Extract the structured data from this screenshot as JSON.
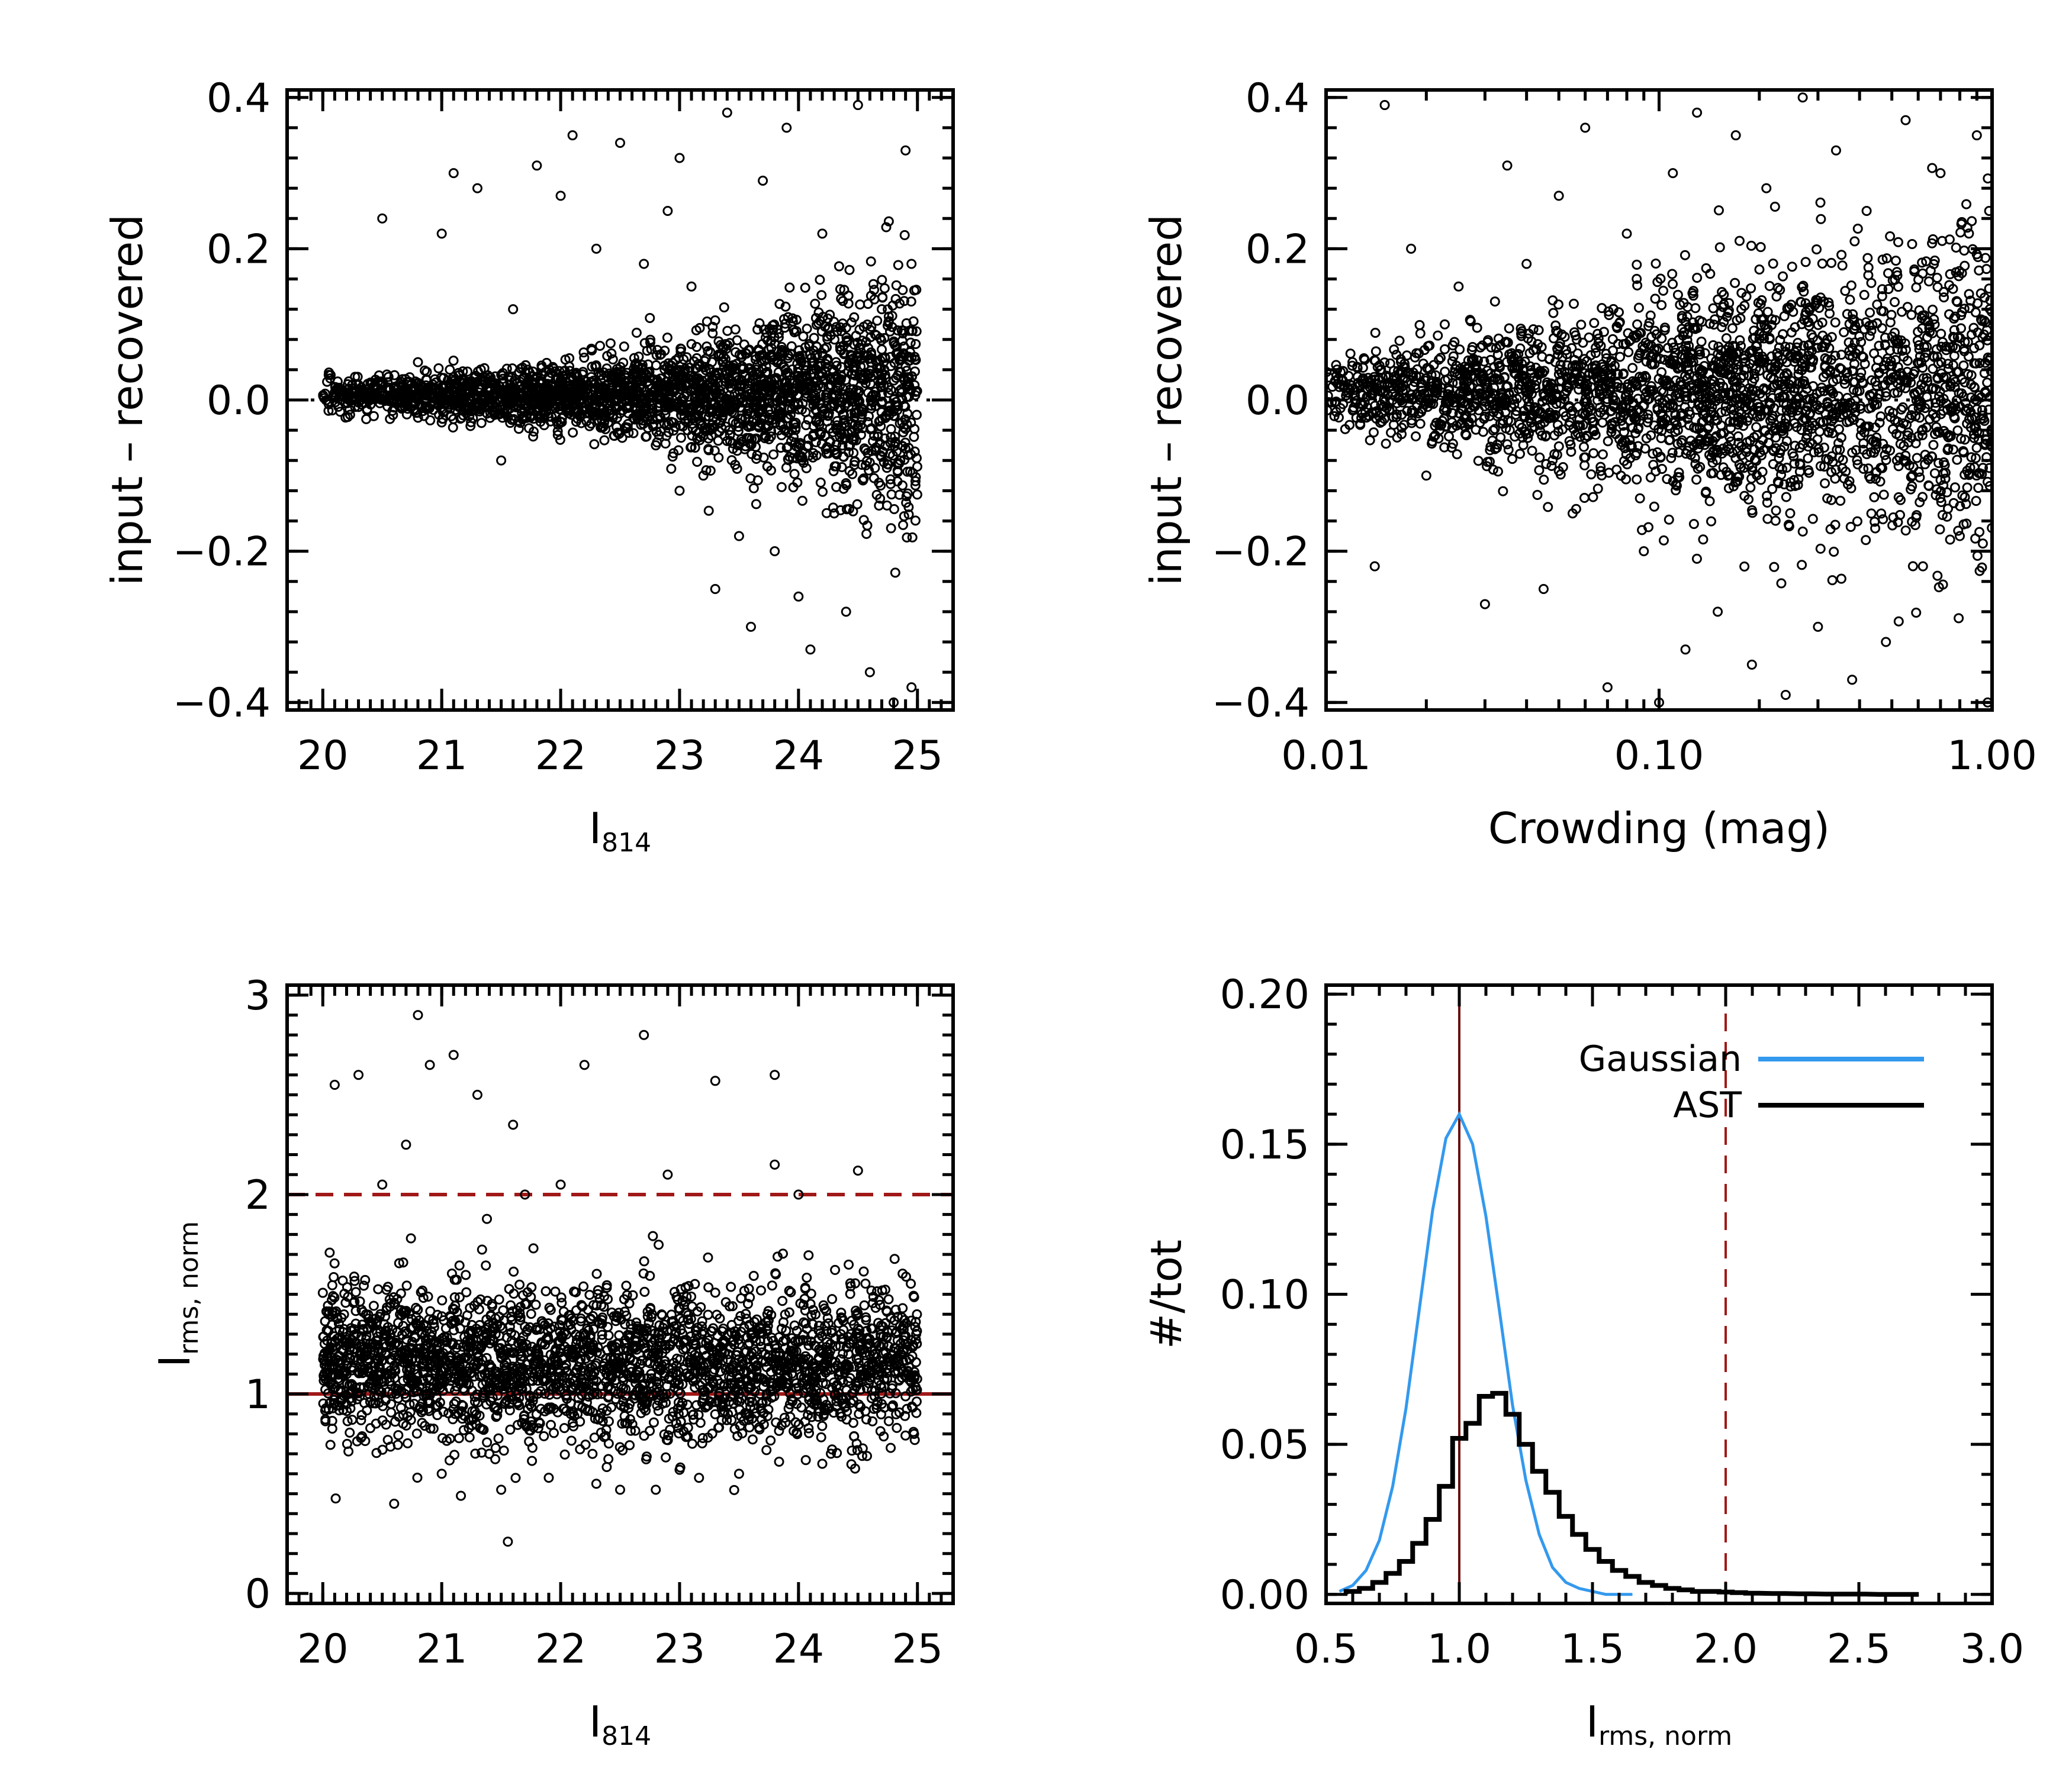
{
  "chart_data": [
    {
      "id": "top-left",
      "type": "scatter",
      "xlabel": "I",
      "xlabel_sub": "814",
      "ylabel": "input – recovered",
      "xlim": [
        19.7,
        25.3
      ],
      "ylim": [
        -0.41,
        0.41
      ],
      "xticks": [
        20,
        21,
        22,
        23,
        24,
        25
      ],
      "xtick_labels": [
        "20",
        "21",
        "22",
        "23",
        "24",
        "25"
      ],
      "yticks": [
        -0.4,
        -0.2,
        0.0,
        0.2,
        0.4
      ],
      "ytick_labels": [
        "−0.4",
        "−0.2",
        "0.0",
        "0.2",
        "0.4"
      ],
      "reference_lines": [
        {
          "axis": "y",
          "value": 0.0,
          "style": "dotted",
          "color": "#000000"
        }
      ],
      "points": [
        [
          20.1,
          0.01
        ],
        [
          20.3,
          0.02
        ],
        [
          20.5,
          0.24
        ],
        [
          20.6,
          -0.01
        ],
        [
          20.8,
          0.05
        ],
        [
          21.0,
          0.22
        ],
        [
          21.1,
          0.3
        ],
        [
          21.3,
          0.28
        ],
        [
          21.5,
          -0.08
        ],
        [
          21.6,
          0.12
        ],
        [
          21.8,
          0.31
        ],
        [
          22.0,
          0.27
        ],
        [
          22.1,
          0.35
        ],
        [
          22.3,
          0.2
        ],
        [
          22.4,
          -0.03
        ],
        [
          22.5,
          0.34
        ],
        [
          22.7,
          0.18
        ],
        [
          22.8,
          -0.06
        ],
        [
          22.9,
          0.25
        ],
        [
          23.0,
          0.32
        ],
        [
          23.0,
          -0.12
        ],
        [
          23.1,
          0.15
        ],
        [
          23.2,
          -0.1
        ],
        [
          23.3,
          -0.25
        ],
        [
          23.4,
          0.38
        ],
        [
          23.5,
          -0.18
        ],
        [
          23.6,
          -0.3
        ],
        [
          23.7,
          0.29
        ],
        [
          23.8,
          -0.2
        ],
        [
          23.9,
          0.36
        ],
        [
          24.0,
          -0.26
        ],
        [
          24.1,
          -0.33
        ],
        [
          24.2,
          0.22
        ],
        [
          24.3,
          -0.15
        ],
        [
          24.4,
          -0.28
        ],
        [
          24.5,
          0.39
        ],
        [
          24.6,
          -0.36
        ],
        [
          24.7,
          0.12
        ],
        [
          24.8,
          -0.4
        ],
        [
          24.9,
          0.33
        ],
        [
          24.95,
          -0.38
        ],
        [
          24.95,
          0.18
        ]
      ]
    },
    {
      "id": "top-right",
      "type": "scatter",
      "xscale": "log",
      "xlabel": "Crowding (mag)",
      "ylabel": "input – recovered",
      "xlim": [
        0.01,
        1.0
      ],
      "ylim": [
        -0.41,
        0.41
      ],
      "xticks": [
        0.01,
        0.1,
        1.0
      ],
      "xtick_labels": [
        "0.01",
        "0.10",
        "1.00"
      ],
      "yticks": [
        -0.4,
        -0.2,
        0.0,
        0.2,
        0.4
      ],
      "ytick_labels": [
        "−0.4",
        "−0.2",
        "0.0",
        "0.2",
        "0.4"
      ],
      "reference_lines": [
        {
          "axis": "y",
          "value": 0.0,
          "style": "dotted",
          "color": "#000000"
        }
      ],
      "points": [
        [
          0.012,
          0.05
        ],
        [
          0.014,
          -0.22
        ],
        [
          0.015,
          0.39
        ],
        [
          0.018,
          0.2
        ],
        [
          0.02,
          -0.1
        ],
        [
          0.025,
          0.15
        ],
        [
          0.03,
          -0.27
        ],
        [
          0.035,
          0.31
        ],
        [
          0.04,
          0.18
        ],
        [
          0.045,
          -0.25
        ],
        [
          0.05,
          0.27
        ],
        [
          0.055,
          -0.15
        ],
        [
          0.06,
          0.36
        ],
        [
          0.07,
          -0.38
        ],
        [
          0.08,
          0.22
        ],
        [
          0.09,
          -0.2
        ],
        [
          0.1,
          -0.4
        ],
        [
          0.11,
          0.3
        ],
        [
          0.12,
          -0.33
        ],
        [
          0.13,
          0.38
        ],
        [
          0.15,
          -0.28
        ],
        [
          0.17,
          0.35
        ],
        [
          0.19,
          -0.35
        ],
        [
          0.21,
          0.28
        ],
        [
          0.24,
          -0.39
        ],
        [
          0.27,
          0.4
        ],
        [
          0.3,
          -0.3
        ],
        [
          0.34,
          0.33
        ],
        [
          0.38,
          -0.37
        ],
        [
          0.42,
          0.25
        ],
        [
          0.48,
          -0.32
        ],
        [
          0.55,
          0.37
        ],
        [
          0.62,
          -0.22
        ],
        [
          0.7,
          0.3
        ],
        [
          0.8,
          -0.18
        ],
        [
          0.9,
          0.35
        ],
        [
          0.97,
          -0.4
        ],
        [
          0.98,
          0.25
        ]
      ]
    },
    {
      "id": "bottom-left",
      "type": "scatter",
      "xlabel": "I",
      "xlabel_sub": "814",
      "ylabel": "I",
      "ylabel_sub": "rms, norm",
      "xlim": [
        19.7,
        25.3
      ],
      "ylim": [
        -0.05,
        3.05
      ],
      "xticks": [
        20,
        21,
        22,
        23,
        24,
        25
      ],
      "xtick_labels": [
        "20",
        "21",
        "22",
        "23",
        "24",
        "25"
      ],
      "yticks": [
        0,
        1,
        2,
        3
      ],
      "ytick_labels": [
        "0",
        "1",
        "2",
        "3"
      ],
      "reference_lines": [
        {
          "axis": "y",
          "value": 1.0,
          "style": "solid",
          "color": "#a01818"
        },
        {
          "axis": "y",
          "value": 2.0,
          "style": "dashed",
          "color": "#a01818"
        }
      ],
      "points": [
        [
          20.1,
          2.55
        ],
        [
          20.3,
          2.6
        ],
        [
          20.5,
          2.05
        ],
        [
          20.6,
          0.45
        ],
        [
          20.7,
          2.25
        ],
        [
          20.8,
          2.9
        ],
        [
          20.9,
          2.65
        ],
        [
          21.0,
          0.6
        ],
        [
          21.1,
          2.7
        ],
        [
          21.3,
          2.5
        ],
        [
          21.4,
          0.7
        ],
        [
          21.5,
          0.52
        ],
        [
          21.6,
          2.35
        ],
        [
          21.7,
          2.0
        ],
        [
          21.9,
          0.58
        ],
        [
          22.0,
          2.05
        ],
        [
          22.2,
          2.65
        ],
        [
          22.3,
          0.55
        ],
        [
          22.5,
          0.52
        ],
        [
          22.7,
          2.8
        ],
        [
          22.8,
          0.52
        ],
        [
          22.9,
          2.1
        ],
        [
          23.0,
          0.62
        ],
        [
          23.3,
          2.57
        ],
        [
          23.5,
          0.6
        ],
        [
          23.8,
          2.6
        ],
        [
          23.8,
          2.15
        ],
        [
          24.0,
          2.0
        ],
        [
          24.2,
          0.65
        ],
        [
          24.5,
          2.12
        ],
        [
          24.7,
          0.95
        ],
        [
          24.9,
          1.25
        ]
      ]
    },
    {
      "id": "bottom-right",
      "type": "line",
      "xlabel": "I",
      "xlabel_sub": "rms, norm",
      "ylabel": "#/tot",
      "xlim": [
        0.5,
        3.0
      ],
      "ylim": [
        -0.003,
        0.203
      ],
      "xticks": [
        0.5,
        1.0,
        1.5,
        2.0,
        2.5,
        3.0
      ],
      "xtick_labels": [
        "0.5",
        "1.0",
        "1.5",
        "2.0",
        "2.5",
        "3.0"
      ],
      "yticks": [
        0.0,
        0.05,
        0.1,
        0.15,
        0.2
      ],
      "ytick_labels": [
        "0.00",
        "0.05",
        "0.10",
        "0.15",
        "0.20"
      ],
      "legend": "top-right",
      "reference_lines": [
        {
          "axis": "x",
          "value": 1.0,
          "style": "solid",
          "color": "#6b1010"
        },
        {
          "axis": "x",
          "value": 2.0,
          "style": "dashed",
          "color": "#a01818"
        }
      ],
      "series": [
        {
          "name": "Gaussian",
          "color": "#3399ee",
          "kind": "curve",
          "x": [
            0.55,
            0.6,
            0.65,
            0.7,
            0.75,
            0.8,
            0.85,
            0.9,
            0.95,
            1.0,
            1.05,
            1.1,
            1.15,
            1.2,
            1.25,
            1.3,
            1.35,
            1.4,
            1.45,
            1.5,
            1.55,
            1.6,
            1.65
          ],
          "y": [
            0.001,
            0.003,
            0.008,
            0.018,
            0.036,
            0.062,
            0.095,
            0.128,
            0.152,
            0.16,
            0.15,
            0.126,
            0.095,
            0.063,
            0.038,
            0.02,
            0.009,
            0.004,
            0.002,
            0.001,
            0.0,
            0.0,
            0.0
          ]
        },
        {
          "name": "AST",
          "color": "#000000",
          "kind": "step",
          "bin_width": 0.05,
          "x": [
            0.6,
            0.65,
            0.7,
            0.75,
            0.8,
            0.85,
            0.9,
            0.95,
            1.0,
            1.05,
            1.1,
            1.15,
            1.2,
            1.25,
            1.3,
            1.35,
            1.4,
            1.45,
            1.5,
            1.55,
            1.6,
            1.65,
            1.7,
            1.75,
            1.8,
            1.85,
            1.9,
            1.95,
            2.0,
            2.05,
            2.1,
            2.2,
            2.3,
            2.4,
            2.5,
            2.6,
            2.7
          ],
          "y": [
            0.001,
            0.002,
            0.004,
            0.007,
            0.011,
            0.017,
            0.025,
            0.036,
            0.052,
            0.057,
            0.066,
            0.067,
            0.06,
            0.05,
            0.041,
            0.034,
            0.026,
            0.02,
            0.015,
            0.011,
            0.008,
            0.006,
            0.004,
            0.003,
            0.002,
            0.0015,
            0.001,
            0.001,
            0.0008,
            0.0006,
            0.0004,
            0.0003,
            0.0002,
            0.0001,
            0.0001,
            0.0,
            0.0
          ]
        }
      ]
    }
  ]
}
